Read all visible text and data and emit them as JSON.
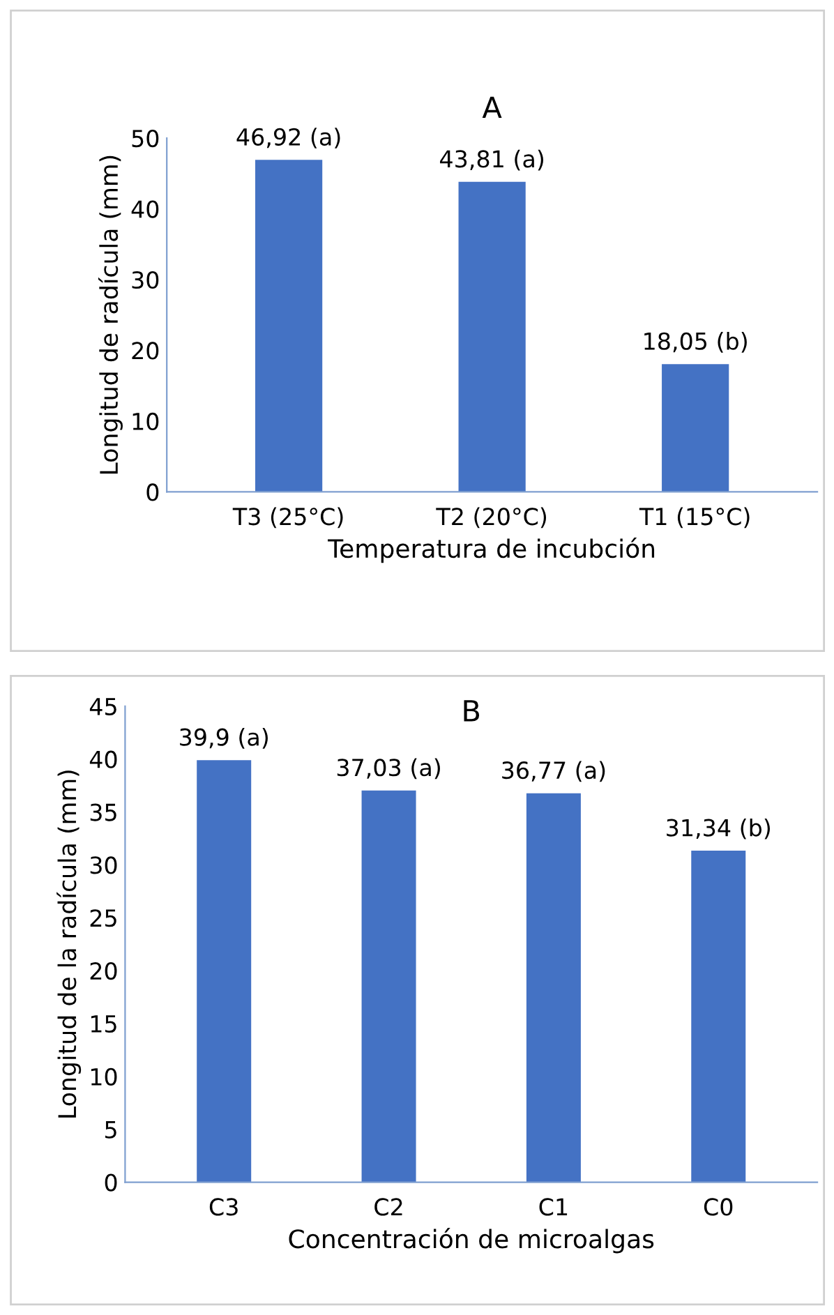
{
  "chart_data": [
    {
      "type": "bar",
      "title": "A",
      "xlabel": "Temperatura de incubción",
      "ylabel": "Longitud de radícula (mm)",
      "categories": [
        "T3 (25°C)",
        "T2 (20°C)",
        "T1 (15°C)"
      ],
      "values": [
        46.92,
        43.81,
        18.05
      ],
      "value_labels": [
        "46,92 (a)",
        "43,81 (a)",
        "18,05 (b)"
      ],
      "color": "#4472c4",
      "ylim": [
        0,
        50
      ],
      "yticks": [
        0,
        10,
        20,
        30,
        40,
        50
      ],
      "grid": false
    },
    {
      "type": "bar",
      "title": "B",
      "xlabel": "Concentración de microalgas",
      "ylabel": "Longitud de la radícula (mm)",
      "categories": [
        "C3",
        "C2",
        "C1",
        "C0"
      ],
      "values": [
        39.9,
        37.03,
        36.77,
        31.34
      ],
      "value_labels": [
        "39,9 (a)",
        "37,03 (a)",
        "36,77 (a)",
        "31,34 (b)"
      ],
      "color": "#4472c4",
      "ylim": [
        0,
        45
      ],
      "yticks": [
        0,
        5,
        10,
        15,
        20,
        25,
        30,
        35,
        40,
        45
      ],
      "grid": false
    }
  ]
}
